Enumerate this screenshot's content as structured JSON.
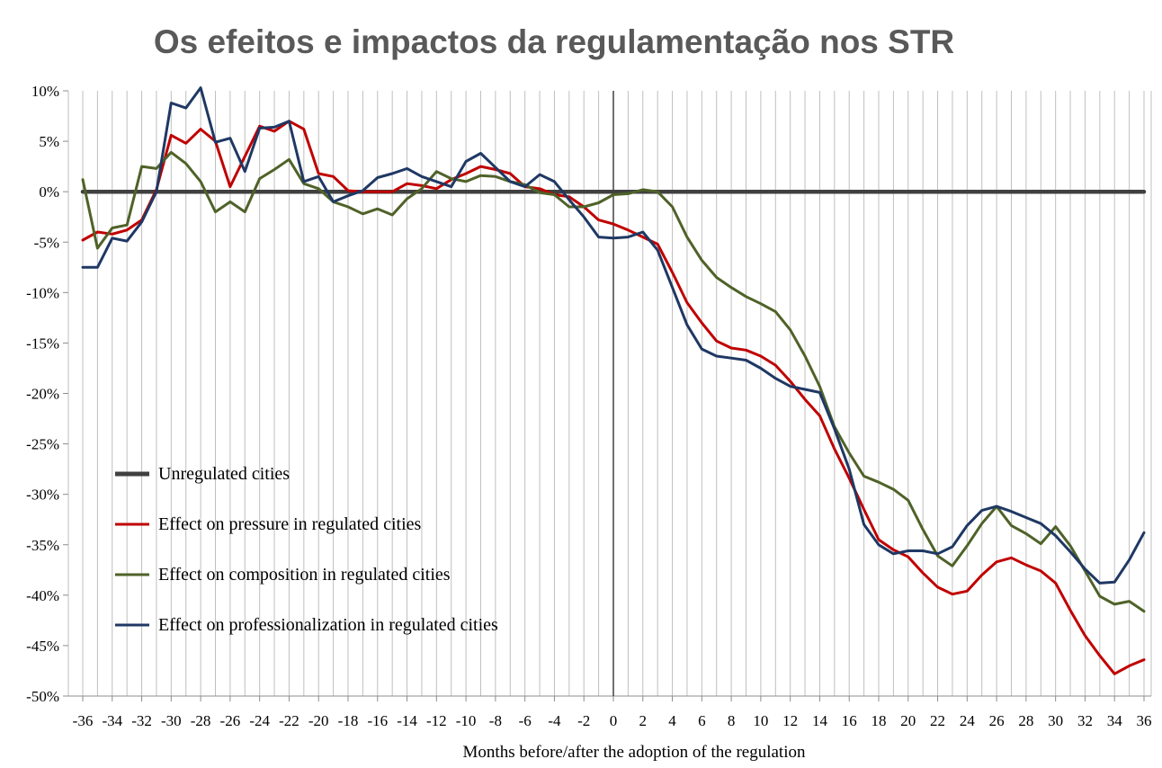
{
  "chart_data": {
    "type": "line",
    "title": "Os efeitos e impactos da regulamentação nos STR",
    "xlabel": "Months before/after the adoption of the regulation",
    "ylabel": "",
    "xlim": [
      -36,
      36
    ],
    "ylim": [
      -50,
      10
    ],
    "x_ticks": [
      -36,
      -34,
      -32,
      -30,
      -28,
      -26,
      -24,
      -22,
      -20,
      -18,
      -16,
      -14,
      -12,
      -10,
      -8,
      -6,
      -4,
      -2,
      0,
      2,
      4,
      6,
      8,
      10,
      12,
      14,
      16,
      18,
      20,
      22,
      24,
      26,
      28,
      30,
      32,
      34,
      36
    ],
    "y_ticks": [
      10,
      5,
      0,
      -5,
      -10,
      -15,
      -20,
      -25,
      -30,
      -35,
      -40,
      -45,
      -50
    ],
    "y_tick_labels": [
      "10%",
      "5%",
      "0%",
      "-5%",
      "-10%",
      "-15%",
      "-20%",
      "-25%",
      "-30%",
      "-35%",
      "-40%",
      "-45%",
      "-50%"
    ],
    "grid": "vertical every month",
    "reference_line_x": 0,
    "legend_position": "lower-left",
    "series": [
      {
        "name": "Unregulated cities",
        "color": "#404040",
        "points": [
          [
            -36,
            0
          ],
          [
            36,
            0
          ]
        ]
      },
      {
        "name": "Effect on pressure in regulated cities",
        "color": "#c00000",
        "points": [
          [
            -36,
            -4.8
          ],
          [
            -35,
            -4
          ],
          [
            -34,
            -4.2
          ],
          [
            -33,
            -3.8
          ],
          [
            -32,
            -2.8
          ],
          [
            -31,
            0.2
          ],
          [
            -30,
            5.6
          ],
          [
            -29,
            4.8
          ],
          [
            -28,
            6.2
          ],
          [
            -27,
            5
          ],
          [
            -26,
            0.5
          ],
          [
            -25,
            3.5
          ],
          [
            -24,
            6.5
          ],
          [
            -23,
            6
          ],
          [
            -22,
            7
          ],
          [
            -21,
            6.2
          ],
          [
            -20,
            1.8
          ],
          [
            -19,
            1.5
          ],
          [
            -18,
            0.1
          ],
          [
            -17,
            0
          ],
          [
            -16,
            0
          ],
          [
            -15,
            0
          ],
          [
            -14,
            0.8
          ],
          [
            -13,
            0.6
          ],
          [
            -12,
            0.3
          ],
          [
            -11,
            1.2
          ],
          [
            -10,
            1.8
          ],
          [
            -9,
            2.5
          ],
          [
            -8,
            2.2
          ],
          [
            -7,
            1.8
          ],
          [
            -6,
            0.5
          ],
          [
            -5,
            0.3
          ],
          [
            -4,
            -0.3
          ],
          [
            -3,
            -0.5
          ],
          [
            -2,
            -1.5
          ],
          [
            -1,
            -2.8
          ],
          [
            0,
            -3.2
          ],
          [
            1,
            -3.8
          ],
          [
            2,
            -4.5
          ],
          [
            3,
            -5.2
          ],
          [
            4,
            -8
          ],
          [
            5,
            -11
          ],
          [
            6,
            -13
          ],
          [
            7,
            -14.8
          ],
          [
            8,
            -15.5
          ],
          [
            9,
            -15.7
          ],
          [
            10,
            -16.3
          ],
          [
            11,
            -17.2
          ],
          [
            12,
            -18.8
          ],
          [
            13,
            -20.6
          ],
          [
            14,
            -22.2
          ],
          [
            15,
            -25.5
          ],
          [
            16,
            -28.4
          ],
          [
            17,
            -31.5
          ],
          [
            18,
            -34.5
          ],
          [
            19,
            -35.5
          ],
          [
            20,
            -36.2
          ],
          [
            21,
            -37.8
          ],
          [
            22,
            -39.2
          ],
          [
            23,
            -39.9
          ],
          [
            24,
            -39.6
          ],
          [
            25,
            -38
          ],
          [
            26,
            -36.7
          ],
          [
            27,
            -36.3
          ],
          [
            28,
            -37
          ],
          [
            29,
            -37.6
          ],
          [
            30,
            -38.8
          ],
          [
            31,
            -41.5
          ],
          [
            32,
            -44
          ],
          [
            33,
            -46
          ],
          [
            34,
            -47.8
          ],
          [
            35,
            -47
          ],
          [
            36,
            -46.4
          ]
        ]
      },
      {
        "name": "Effect on composition in regulated cities",
        "color": "#4f6228",
        "points": [
          [
            -36,
            1.2
          ],
          [
            -35,
            -5.6
          ],
          [
            -34,
            -3.6
          ],
          [
            -33,
            -3.3
          ],
          [
            -32,
            2.5
          ],
          [
            -31,
            2.3
          ],
          [
            -30,
            3.9
          ],
          [
            -29,
            2.8
          ],
          [
            -28,
            1
          ],
          [
            -27,
            -2
          ],
          [
            -26,
            -1
          ],
          [
            -25,
            -2
          ],
          [
            -24,
            1.3
          ],
          [
            -23,
            2.2
          ],
          [
            -22,
            3.2
          ],
          [
            -21,
            0.8
          ],
          [
            -20,
            0.3
          ],
          [
            -19,
            -1
          ],
          [
            -18,
            -1.5
          ],
          [
            -17,
            -2.2
          ],
          [
            -16,
            -1.7
          ],
          [
            -15,
            -2.3
          ],
          [
            -14,
            -0.7
          ],
          [
            -13,
            0.3
          ],
          [
            -12,
            2
          ],
          [
            -11,
            1.3
          ],
          [
            -10,
            1
          ],
          [
            -9,
            1.6
          ],
          [
            -8,
            1.5
          ],
          [
            -7,
            1
          ],
          [
            -6,
            0.7
          ],
          [
            -5,
            -0.1
          ],
          [
            -4,
            -0.3
          ],
          [
            -3,
            -1.5
          ],
          [
            -2,
            -1.5
          ],
          [
            -1,
            -1.1
          ],
          [
            0,
            -0.3
          ],
          [
            1,
            -0.2
          ],
          [
            2,
            0.2
          ],
          [
            3,
            0
          ],
          [
            4,
            -1.5
          ],
          [
            5,
            -4.5
          ],
          [
            6,
            -6.8
          ],
          [
            7,
            -8.5
          ],
          [
            8,
            -9.5
          ],
          [
            9,
            -10.4
          ],
          [
            10,
            -11.1
          ],
          [
            11,
            -11.9
          ],
          [
            12,
            -13.7
          ],
          [
            13,
            -16.3
          ],
          [
            14,
            -19.3
          ],
          [
            15,
            -23.3
          ],
          [
            16,
            -25.9
          ],
          [
            17,
            -28.2
          ],
          [
            18,
            -28.8
          ],
          [
            19,
            -29.5
          ],
          [
            20,
            -30.6
          ],
          [
            21,
            -33.5
          ],
          [
            22,
            -36.1
          ],
          [
            23,
            -37.1
          ],
          [
            24,
            -35.1
          ],
          [
            25,
            -32.9
          ],
          [
            26,
            -31.2
          ],
          [
            27,
            -33.1
          ],
          [
            28,
            -33.9
          ],
          [
            29,
            -34.9
          ],
          [
            30,
            -33.2
          ],
          [
            31,
            -35.1
          ],
          [
            32,
            -37.6
          ],
          [
            33,
            -40.1
          ],
          [
            34,
            -40.9
          ],
          [
            35,
            -40.6
          ],
          [
            36,
            -41.6
          ]
        ]
      },
      {
        "name": "Effect on professionalization in regulated cities",
        "color": "#1f3864",
        "points": [
          [
            -36,
            -7.5
          ],
          [
            -35,
            -7.5
          ],
          [
            -34,
            -4.6
          ],
          [
            -33,
            -4.9
          ],
          [
            -32,
            -3
          ],
          [
            -31,
            0
          ],
          [
            -30,
            8.8
          ],
          [
            -29,
            8.3
          ],
          [
            -28,
            10.3
          ],
          [
            -27,
            4.9
          ],
          [
            -26,
            5.3
          ],
          [
            -25,
            2
          ],
          [
            -24,
            6.3
          ],
          [
            -23,
            6.4
          ],
          [
            -22,
            7
          ],
          [
            -21,
            1
          ],
          [
            -20,
            1.5
          ],
          [
            -19,
            -1
          ],
          [
            -18,
            -0.4
          ],
          [
            -17,
            0.1
          ],
          [
            -16,
            1.4
          ],
          [
            -15,
            1.8
          ],
          [
            -14,
            2.3
          ],
          [
            -13,
            1.5
          ],
          [
            -12,
            1
          ],
          [
            -11,
            0.5
          ],
          [
            -10,
            3
          ],
          [
            -9,
            3.8
          ],
          [
            -8,
            2.4
          ],
          [
            -7,
            1
          ],
          [
            -6,
            0.5
          ],
          [
            -5,
            1.7
          ],
          [
            -4,
            1
          ],
          [
            -3,
            -0.8
          ],
          [
            -2,
            -2.5
          ],
          [
            -1,
            -4.5
          ],
          [
            0,
            -4.6
          ],
          [
            1,
            -4.5
          ],
          [
            2,
            -4
          ],
          [
            3,
            -5.8
          ],
          [
            4,
            -9.5
          ],
          [
            5,
            -13.2
          ],
          [
            6,
            -15.6
          ],
          [
            7,
            -16.3
          ],
          [
            8,
            -16.5
          ],
          [
            9,
            -16.7
          ],
          [
            10,
            -17.5
          ],
          [
            11,
            -18.5
          ],
          [
            12,
            -19.3
          ],
          [
            13,
            -19.6
          ],
          [
            14,
            -19.9
          ],
          [
            15,
            -23.5
          ],
          [
            16,
            -27.5
          ],
          [
            17,
            -33
          ],
          [
            18,
            -35
          ],
          [
            19,
            -35.9
          ],
          [
            20,
            -35.6
          ],
          [
            21,
            -35.6
          ],
          [
            22,
            -35.9
          ],
          [
            23,
            -35.2
          ],
          [
            24,
            -33.1
          ],
          [
            25,
            -31.6
          ],
          [
            26,
            -31.2
          ],
          [
            27,
            -31.7
          ],
          [
            28,
            -32.3
          ],
          [
            29,
            -32.9
          ],
          [
            30,
            -34.1
          ],
          [
            31,
            -35.7
          ],
          [
            32,
            -37.4
          ],
          [
            33,
            -38.8
          ],
          [
            34,
            -38.7
          ],
          [
            35,
            -36.5
          ],
          [
            36,
            -33.8
          ]
        ]
      }
    ]
  }
}
